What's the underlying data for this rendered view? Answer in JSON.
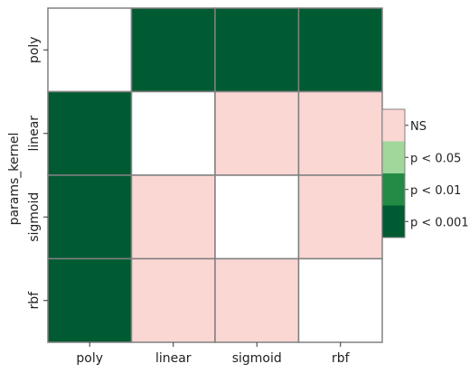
{
  "chart_data": {
    "type": "heatmap",
    "title": "",
    "xlabel": "",
    "ylabel": "params_kernel",
    "x_categories": [
      "poly",
      "linear",
      "sigmoid",
      "rbf"
    ],
    "y_categories": [
      "poly",
      "linear",
      "sigmoid",
      "rbf"
    ],
    "cells": [
      [
        "self",
        "p < 0.001",
        "p < 0.001",
        "p < 0.001"
      ],
      [
        "p < 0.001",
        "self",
        "NS",
        "NS"
      ],
      [
        "p < 0.001",
        "NS",
        "self",
        "NS"
      ],
      [
        "p < 0.001",
        "NS",
        "NS",
        "self"
      ]
    ],
    "legend": {
      "placement": "right",
      "entries": [
        {
          "label": "NS",
          "color": "#fbd7d4"
        },
        {
          "label": "p < 0.05",
          "color": "#a0d89b"
        },
        {
          "label": "p < 0.01",
          "color": "#238b46"
        },
        {
          "label": "p < 0.001",
          "color": "#005a32"
        }
      ]
    },
    "colors": {
      "self": "#ffffff",
      "grid": "#808080"
    }
  }
}
